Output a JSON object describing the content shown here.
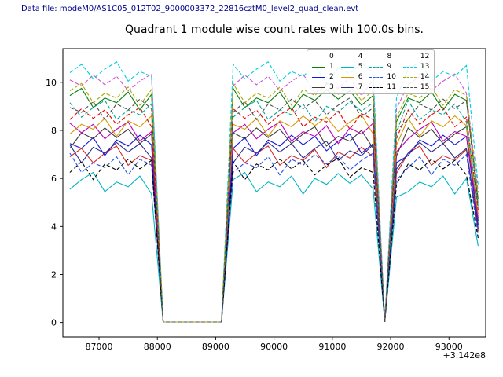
{
  "header": {
    "data_file_label": "Data file: modeM0/AS1C05_012T02_9000003372_22816cztM0_level2_quad_clean.evt"
  },
  "chart_data": {
    "type": "line",
    "title": "Quadrant 1 module wise count rates with 100.0s bins.",
    "xlabel": "",
    "ylabel": "",
    "x_offset_label": "+3.142e8",
    "x_offset_value": 314200000,
    "x_ticks": [
      87000,
      88000,
      89000,
      90000,
      91000,
      92000,
      93000
    ],
    "y_ticks": [
      0,
      2,
      4,
      6,
      8,
      10
    ],
    "xlim": [
      86380,
      93630
    ],
    "ylim": [
      -0.6,
      11.4
    ],
    "grid": false,
    "legend_position": "upper right",
    "legend_columns": 4,
    "x": [
      86500,
      86700,
      86900,
      87100,
      87300,
      87500,
      87700,
      87900,
      88100,
      88300,
      88500,
      88700,
      88900,
      89100,
      89300,
      89500,
      89700,
      89900,
      90100,
      90300,
      90500,
      90700,
      90900,
      91100,
      91300,
      91500,
      91700,
      91900,
      92100,
      92300,
      92500,
      92700,
      92900,
      93100,
      93300,
      93500
    ],
    "series": [
      {
        "name": "0",
        "color": "#d62728",
        "dash": "solid",
        "values": [
          6.9,
          7.25,
          6.65,
          7.05,
          7.35,
          6.55,
          6.95,
          6.75,
          0.02,
          0.02,
          0.02,
          0.02,
          0.02,
          0.02,
          7.25,
          6.65,
          7.05,
          7.35,
          6.55,
          6.95,
          6.75,
          7.2,
          6.45,
          7.1,
          6.85,
          7.3,
          6.9,
          0.02,
          6.21,
          7.05,
          7.35,
          6.55,
          6.95,
          6.75,
          7.2,
          3.8
        ]
      },
      {
        "name": "1",
        "color": "#0a800a",
        "dash": "solid",
        "values": [
          9.45,
          9.75,
          8.95,
          9.35,
          9.15,
          9.6,
          8.85,
          9.5,
          0.02,
          0.02,
          0.02,
          0.02,
          0.02,
          0.02,
          9.75,
          8.95,
          9.35,
          9.15,
          9.6,
          8.85,
          9.5,
          9.25,
          9.7,
          9.3,
          9.65,
          9.05,
          9.45,
          0.02,
          8.37,
          9.35,
          9.15,
          9.6,
          8.85,
          9.5,
          9.25,
          5.12
        ]
      },
      {
        "name": "2",
        "color": "#1414e0",
        "dash": "solid",
        "values": [
          7.45,
          7.25,
          7.7,
          6.95,
          7.6,
          7.35,
          7.8,
          7.4,
          0.02,
          0.02,
          0.02,
          0.02,
          0.02,
          0.02,
          7.25,
          7.7,
          6.95,
          7.6,
          7.35,
          7.8,
          7.4,
          7.75,
          7.15,
          7.55,
          7.85,
          7.05,
          7.45,
          0.02,
          6.66,
          6.95,
          7.6,
          7.35,
          7.8,
          7.4,
          7.75,
          4.07
        ]
      },
      {
        "name": "3",
        "color": "#3d3d3d",
        "dash": "solid",
        "values": [
          7.25,
          7.9,
          7.65,
          8.1,
          7.7,
          8.05,
          7.45,
          7.85,
          0.02,
          0.02,
          0.02,
          0.02,
          0.02,
          0.02,
          7.9,
          7.65,
          8.1,
          7.7,
          8.05,
          7.45,
          7.85,
          8.15,
          7.35,
          7.75,
          7.55,
          8.0,
          7.25,
          0.02,
          6.93,
          8.1,
          7.7,
          8.05,
          7.45,
          7.85,
          8.15,
          4.24
        ]
      },
      {
        "name": "4",
        "color": "#bf00bf",
        "dash": "solid",
        "values": [
          8.3,
          7.9,
          8.25,
          7.65,
          8.05,
          8.35,
          7.55,
          7.95,
          0.02,
          0.02,
          0.02,
          0.02,
          0.02,
          0.02,
          7.9,
          8.25,
          7.65,
          8.05,
          8.35,
          7.55,
          7.95,
          7.75,
          8.2,
          7.45,
          8.1,
          7.85,
          8.3,
          0.02,
          7.11,
          7.65,
          8.05,
          8.35,
          7.55,
          7.95,
          7.75,
          4.35
        ]
      },
      {
        "name": "5",
        "color": "#00b5c5",
        "dash": "solid",
        "values": [
          5.55,
          5.95,
          6.25,
          5.45,
          5.85,
          5.65,
          6.1,
          5.35,
          0.02,
          0.02,
          0.02,
          0.02,
          0.02,
          0.02,
          5.95,
          6.25,
          5.45,
          5.85,
          5.65,
          6.1,
          5.35,
          6.0,
          5.75,
          6.2,
          5.8,
          6.15,
          5.55,
          0.02,
          5.22,
          5.45,
          5.85,
          5.65,
          6.1,
          5.35,
          6.0,
          3.19
        ]
      },
      {
        "name": "6",
        "color": "#d49a00",
        "dash": "solid",
        "values": [
          7.85,
          8.25,
          8.05,
          8.5,
          7.75,
          8.4,
          8.15,
          8.6,
          0.02,
          0.02,
          0.02,
          0.02,
          0.02,
          0.02,
          8.25,
          8.05,
          8.5,
          7.75,
          8.4,
          8.15,
          8.6,
          8.2,
          8.55,
          7.95,
          8.35,
          8.65,
          7.85,
          0.02,
          7.38,
          8.5,
          7.75,
          8.4,
          8.15,
          8.6,
          8.2,
          4.51
        ]
      },
      {
        "name": "7",
        "color": "#2e2e8b",
        "dash": "solid",
        "values": [
          7.4,
          6.65,
          7.3,
          7.05,
          7.5,
          7.1,
          7.45,
          6.85,
          0.02,
          0.02,
          0.02,
          0.02,
          0.02,
          0.02,
          6.65,
          7.3,
          7.05,
          7.5,
          7.1,
          7.45,
          6.85,
          7.25,
          7.55,
          6.75,
          7.15,
          6.95,
          7.4,
          0.02,
          6.39,
          7.05,
          7.5,
          7.1,
          7.45,
          6.85,
          7.25,
          3.91
        ]
      },
      {
        "name": "8",
        "color": "#e60000",
        "dash": "dashed",
        "values": [
          8.45,
          8.9,
          8.5,
          8.85,
          8.25,
          8.65,
          8.95,
          8.15,
          0.02,
          0.02,
          0.02,
          0.02,
          0.02,
          0.02,
          8.9,
          8.5,
          8.85,
          8.25,
          8.65,
          8.95,
          8.15,
          8.55,
          8.35,
          8.8,
          8.05,
          8.7,
          8.45,
          0.02,
          7.65,
          8.85,
          8.25,
          8.65,
          8.95,
          8.15,
          8.55,
          4.68
        ]
      },
      {
        "name": "9",
        "color": "#00a896",
        "dash": "dashed",
        "values": [
          9.15,
          8.55,
          8.95,
          9.25,
          8.45,
          8.85,
          8.65,
          9.1,
          0.02,
          0.02,
          0.02,
          0.02,
          0.02,
          0.02,
          8.55,
          8.95,
          9.25,
          8.45,
          8.85,
          8.65,
          9.1,
          8.35,
          9.0,
          8.75,
          9.2,
          8.8,
          9.15,
          0.02,
          7.92,
          9.25,
          8.45,
          8.85,
          8.65,
          9.1,
          8.35,
          4.84
        ]
      },
      {
        "name": "10",
        "color": "#2a52e8",
        "dash": "dashed",
        "values": [
          7.05,
          6.25,
          6.65,
          6.45,
          6.9,
          6.15,
          6.8,
          6.55,
          0.02,
          0.02,
          0.02,
          0.02,
          0.02,
          0.02,
          6.25,
          6.65,
          6.45,
          6.9,
          6.15,
          6.8,
          6.55,
          7.0,
          6.6,
          6.95,
          6.35,
          6.75,
          7.05,
          0.02,
          5.94,
          6.45,
          6.9,
          6.15,
          6.8,
          6.55,
          7.0,
          3.63
        ]
      },
      {
        "name": "11",
        "color": "#000000",
        "dash": "dashed",
        "values": [
          6.25,
          6.7,
          5.95,
          6.6,
          6.35,
          6.8,
          6.4,
          6.75,
          0.02,
          0.02,
          0.02,
          0.02,
          0.02,
          0.02,
          6.7,
          5.95,
          6.6,
          6.35,
          6.8,
          6.4,
          6.75,
          6.15,
          6.55,
          6.85,
          6.05,
          6.45,
          6.25,
          0.02,
          5.76,
          6.6,
          6.35,
          6.8,
          6.4,
          6.75,
          6.15,
          3.52
        ]
      },
      {
        "name": "12",
        "color": "#d050d0",
        "dash": "dashed",
        "values": [
          10.1,
          9.85,
          10.3,
          9.9,
          10.25,
          9.65,
          10.05,
          10.35,
          0.02,
          0.02,
          0.02,
          0.02,
          0.02,
          0.02,
          9.85,
          10.3,
          9.9,
          10.25,
          9.65,
          10.05,
          10.35,
          9.55,
          9.95,
          9.75,
          10.2,
          9.45,
          10.1,
          0.02,
          8.91,
          9.9,
          10.25,
          9.65,
          10.05,
          10.35,
          9.55,
          5.45
        ]
      },
      {
        "name": "13",
        "color": "#00cfe0",
        "dash": "dashed",
        "values": [
          10.4,
          10.75,
          10.15,
          10.55,
          10.85,
          10.05,
          10.45,
          10.25,
          0.02,
          0.02,
          0.02,
          0.02,
          0.02,
          0.02,
          10.75,
          10.15,
          10.55,
          10.85,
          10.05,
          10.45,
          10.25,
          10.7,
          9.95,
          10.6,
          10.35,
          10.8,
          10.4,
          0.02,
          9.36,
          10.55,
          10.85,
          10.05,
          10.45,
          10.25,
          10.7,
          5.72
        ]
      },
      {
        "name": "14",
        "color": "#a8a800",
        "dash": "dashed",
        "values": [
          9.65,
          9.95,
          9.15,
          9.55,
          9.35,
          9.8,
          9.05,
          9.7,
          0.02,
          0.02,
          0.02,
          0.02,
          0.02,
          0.02,
          9.95,
          9.15,
          9.55,
          9.35,
          9.8,
          9.05,
          9.7,
          9.45,
          9.9,
          9.5,
          9.85,
          9.25,
          9.65,
          0.02,
          8.55,
          9.55,
          9.35,
          9.8,
          9.05,
          9.7,
          9.45,
          5.23
        ]
      },
      {
        "name": "15",
        "color": "#4d4d4d",
        "dash": "dashed",
        "values": [
          8.95,
          8.75,
          9.2,
          8.45,
          9.1,
          8.85,
          9.3,
          8.9,
          0.02,
          0.02,
          0.02,
          0.02,
          0.02,
          0.02,
          8.75,
          9.2,
          8.45,
          9.1,
          8.85,
          9.3,
          8.9,
          9.25,
          8.65,
          9.05,
          9.35,
          8.55,
          8.95,
          0.02,
          8.01,
          8.45,
          9.1,
          8.85,
          9.3,
          8.9,
          9.25,
          4.9
        ]
      }
    ]
  }
}
